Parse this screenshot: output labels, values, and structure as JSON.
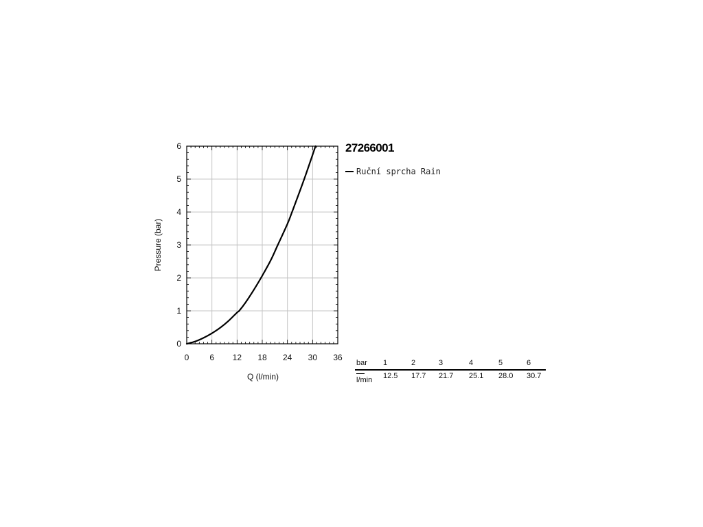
{
  "product_code": "27266001",
  "legend": {
    "label": "Ruční sprcha Rain"
  },
  "flow_table": {
    "pressure_label": "bar",
    "flow_label": "l/min",
    "pressures": [
      "1",
      "2",
      "3",
      "4",
      "5",
      "6"
    ],
    "flows": [
      "12.5",
      "17.7",
      "21.7",
      "25.1",
      "28.0",
      "30.7"
    ]
  },
  "chart_data": {
    "type": "line",
    "xlabel": "Q (l/min)",
    "ylabel": "Pressure (bar)",
    "xlim": [
      0,
      36
    ],
    "ylim": [
      0,
      6
    ],
    "xticks": [
      "0",
      "6",
      "12",
      "18",
      "24",
      "30",
      "36"
    ],
    "yticks": [
      "0",
      "1",
      "2",
      "3",
      "4",
      "5",
      "6"
    ],
    "grid": true,
    "line_color": "#000000",
    "series": [
      {
        "name": "Ruční sprcha Rain",
        "x": [
          0,
          2,
          4,
          6,
          8,
          10,
          12,
          12.5,
          14,
          16,
          17.7,
          20,
          21.7,
          24,
          25.1,
          28.0,
          30.7
        ],
        "y": [
          0,
          0.07,
          0.18,
          0.32,
          0.49,
          0.7,
          0.95,
          1,
          1.25,
          1.64,
          2,
          2.53,
          3,
          3.64,
          4,
          5,
          6
        ]
      }
    ]
  }
}
